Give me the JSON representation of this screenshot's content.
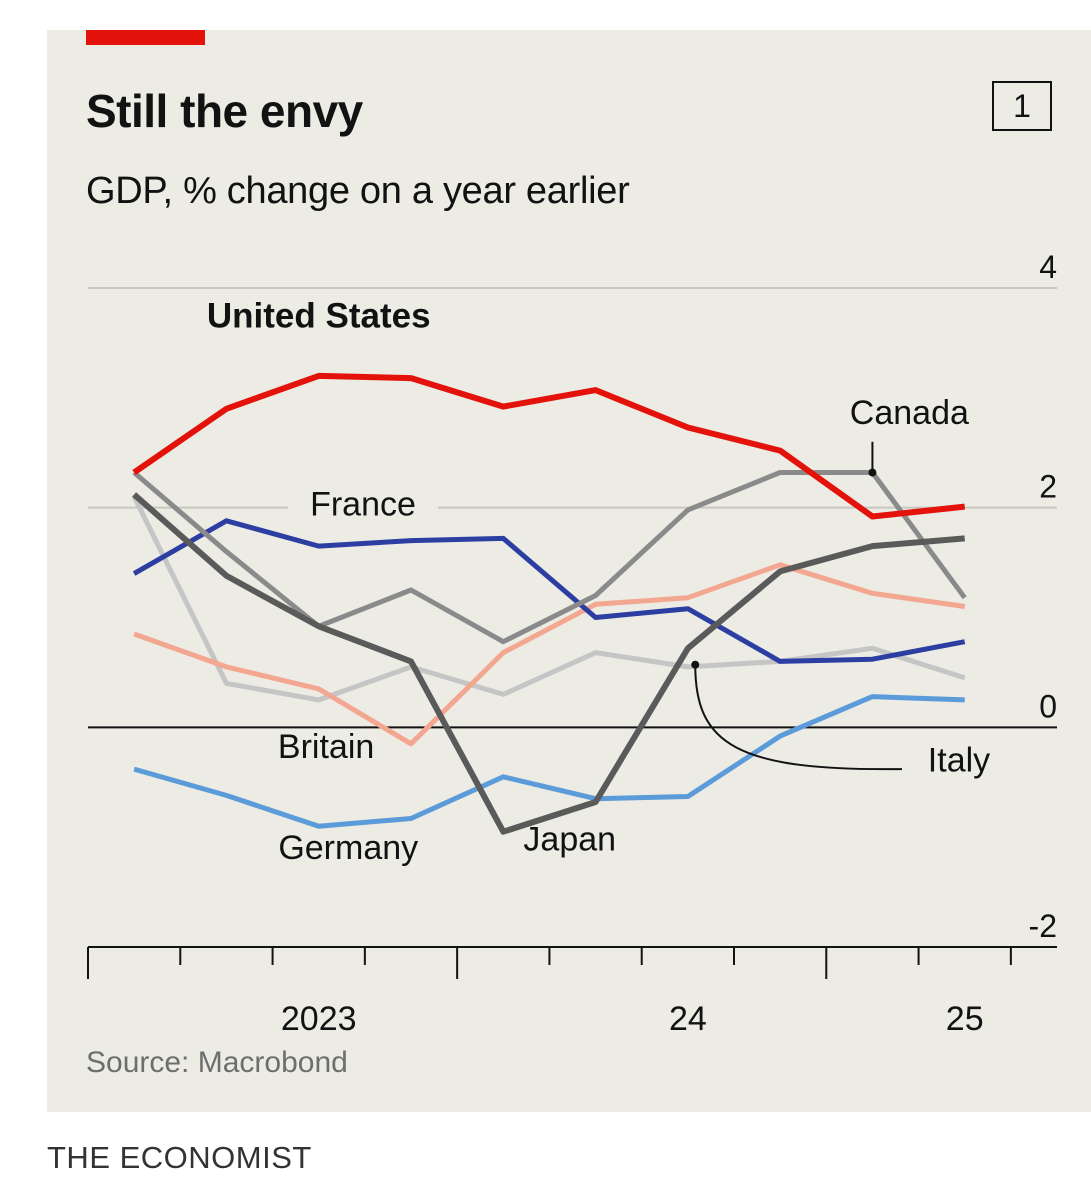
{
  "brand": "THE ECONOMIST",
  "chart_data": {
    "type": "line",
    "title": "Still the envy",
    "subtitle": "GDP, % change on a year earlier",
    "chart_number": "1",
    "source": "Source: Macrobond",
    "ylim": [
      -2,
      4
    ],
    "y_ticks": [
      4,
      2,
      0,
      -2
    ],
    "y_tick_labels": [
      "4",
      "2",
      "0",
      "-2"
    ],
    "x_labels": [
      "2023",
      "24",
      "25"
    ],
    "x_label_positions": [
      2023.5,
      2024.5,
      2025.25
    ],
    "x_ticks": [
      2022.875,
      2023.125,
      2023.375,
      2023.625,
      2023.875,
      2024.125,
      2024.375,
      2024.625,
      2024.875,
      2025.125,
      2025.375
    ],
    "x_major_ticks": [
      2022.875,
      2023.875,
      2024.875
    ],
    "x_range": [
      2022.875,
      2025.5
    ],
    "grid": "horizontal",
    "zero_line": true,
    "x": [
      2023.0,
      2023.25,
      2023.5,
      2023.75,
      2024.0,
      2024.25,
      2024.5,
      2024.75,
      2025.0,
      2025.25
    ],
    "series": [
      {
        "name": "Germany",
        "color": "#5b9bd9",
        "width": 5,
        "values": [
          -0.38,
          -0.62,
          -0.9,
          -0.83,
          -0.45,
          -0.65,
          -0.63,
          -0.08,
          0.28,
          0.25
        ]
      },
      {
        "name": "Italy",
        "color": "#c5c5c5",
        "width": 5,
        "values": [
          2.1,
          0.4,
          0.25,
          0.55,
          0.3,
          0.68,
          0.55,
          0.6,
          0.72,
          0.45
        ]
      },
      {
        "name": "Britain",
        "color": "#f3a690",
        "width": 5,
        "values": [
          0.85,
          0.55,
          0.35,
          -0.15,
          0.68,
          1.12,
          1.18,
          1.48,
          1.22,
          1.1
        ]
      },
      {
        "name": "France",
        "color": "#2d3ea3",
        "width": 5,
        "values": [
          1.4,
          1.88,
          1.65,
          1.7,
          1.72,
          1.0,
          1.08,
          0.6,
          0.62,
          0.78
        ]
      },
      {
        "name": "Canada",
        "color": "#8a8a8a",
        "width": 5,
        "values": [
          2.32,
          1.6,
          0.92,
          1.25,
          0.78,
          1.2,
          1.98,
          2.32,
          2.32,
          1.18
        ]
      },
      {
        "name": "Japan",
        "color": "#5a5a5a",
        "width": 6,
        "values": [
          2.12,
          1.38,
          0.92,
          0.6,
          -0.95,
          -0.68,
          0.72,
          1.42,
          1.65,
          1.72
        ]
      },
      {
        "name": "United States",
        "color": "#e3120b",
        "width": 6,
        "values": [
          2.32,
          2.9,
          3.2,
          3.18,
          2.92,
          3.07,
          2.73,
          2.52,
          1.92,
          2.01
        ]
      }
    ],
    "labels": [
      {
        "text": "United States",
        "x": 2023.5,
        "y": 3.64,
        "bold": true
      },
      {
        "text": "Canada",
        "x": 2025.1,
        "y": 2.76
      },
      {
        "text": "France",
        "x": 2023.62,
        "y": 1.93
      },
      {
        "text": "Britain",
        "x": 2023.52,
        "y": -0.28
      },
      {
        "text": "Germany",
        "x": 2023.58,
        "y": -1.2
      },
      {
        "text": "Japan",
        "x": 2024.18,
        "y": -1.12
      },
      {
        "text": "Italy",
        "x": 2025.15,
        "y": -0.4
      }
    ]
  }
}
